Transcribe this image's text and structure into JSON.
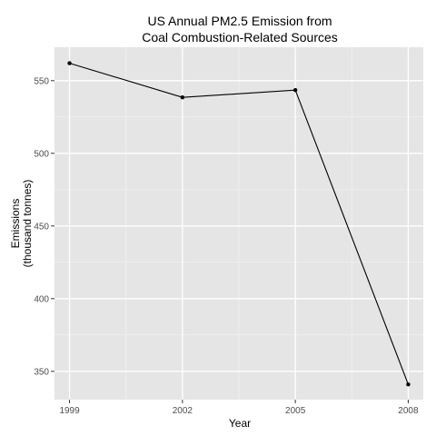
{
  "chart_data": {
    "type": "line",
    "title_lines": [
      "US Annual PM2.5 Emission from",
      "Coal Combustion-Related Sources"
    ],
    "xlabel": "Year",
    "ylabel_lines": [
      "Emissions",
      "(thousand tonnes)"
    ],
    "x": [
      1999,
      2002,
      2005,
      2008
    ],
    "series": [
      {
        "values": [
          562,
          538.5,
          543.5,
          341
        ]
      }
    ],
    "xticks": [
      "1999",
      "2002",
      "2005",
      "2008"
    ],
    "yticks": [
      "350",
      "400",
      "450",
      "500",
      "550"
    ],
    "ytick_values": [
      350,
      400,
      450,
      500,
      550
    ],
    "xlim": [
      1998.6,
      2008.4
    ],
    "ylim": [
      330.5,
      573
    ],
    "grid": true,
    "colors": {
      "panel_background": "#e5e5e5",
      "grid_major": "#ffffff",
      "grid_minor": "#f2f2f2",
      "line": "#000000",
      "point": "#000000"
    }
  }
}
